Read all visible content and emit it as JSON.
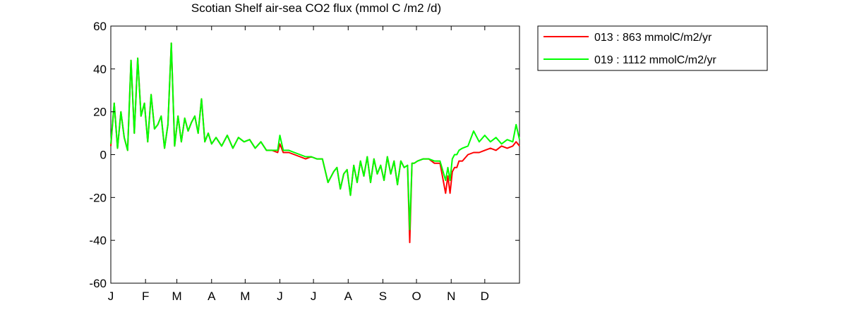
{
  "chart_data": {
    "type": "line",
    "title": "Scotian Shelf  air-sea CO2 flux (mmol C /m2 /d)",
    "xlabel": "",
    "ylabel": "",
    "ylim": [
      -60,
      60
    ],
    "yticks": [
      60,
      40,
      20,
      0,
      -20,
      -40,
      -60
    ],
    "xlim": [
      1,
      366
    ],
    "xticks": [
      {
        "day": 1,
        "label": "J"
      },
      {
        "day": 32,
        "label": "F"
      },
      {
        "day": 60,
        "label": "M"
      },
      {
        "day": 91,
        "label": "A"
      },
      {
        "day": 121,
        "label": "M"
      },
      {
        "day": 152,
        "label": "J"
      },
      {
        "day": 182,
        "label": "J"
      },
      {
        "day": 213,
        "label": "A"
      },
      {
        "day": 244,
        "label": "S"
      },
      {
        "day": 274,
        "label": "O"
      },
      {
        "day": 305,
        "label": "N"
      },
      {
        "day": 335,
        "label": "D"
      }
    ],
    "grid": false,
    "legend_position": "outside-top-right",
    "series": [
      {
        "name": "013 : 863 mmolC/m2/yr",
        "color": "#ff0000",
        "x": [
          1,
          4,
          7,
          10,
          13,
          16,
          19,
          22,
          25,
          28,
          31,
          34,
          37,
          40,
          43,
          46,
          49,
          52,
          55,
          58,
          61,
          64,
          67,
          70,
          73,
          76,
          79,
          82,
          85,
          88,
          91,
          95,
          100,
          105,
          110,
          115,
          120,
          125,
          130,
          135,
          140,
          145,
          150,
          152,
          155,
          160,
          165,
          170,
          175,
          180,
          185,
          190,
          195,
          200,
          203,
          206,
          209,
          212,
          215,
          218,
          221,
          224,
          227,
          230,
          233,
          236,
          239,
          242,
          245,
          248,
          251,
          254,
          257,
          260,
          263,
          266,
          268,
          270,
          272,
          275,
          280,
          285,
          290,
          295,
          300,
          302,
          304,
          306,
          308,
          310,
          312,
          315,
          320,
          325,
          330,
          335,
          340,
          345,
          350,
          355,
          360,
          363,
          366
        ],
        "y": [
          4,
          24,
          3,
          20,
          8,
          2,
          44,
          10,
          45,
          18,
          24,
          6,
          28,
          12,
          14,
          18,
          3,
          14,
          52,
          4,
          18,
          6,
          17,
          11,
          15,
          18,
          10,
          26,
          6,
          10,
          5,
          8,
          4,
          9,
          3,
          8,
          6,
          7,
          3,
          6,
          2,
          2,
          1,
          5,
          1,
          1,
          0,
          -1,
          -2,
          -1,
          -2,
          -2,
          -13,
          -8,
          -6,
          -16,
          -9,
          -7,
          -19,
          -5,
          -13,
          -3,
          -10,
          -1,
          -13,
          -2,
          -9,
          -5,
          -12,
          -1,
          -9,
          -3,
          -14,
          -3,
          -6,
          -5,
          -41,
          -4,
          -4,
          -3,
          -2,
          -2,
          -4,
          -4,
          -18,
          -10,
          -18,
          -8,
          -6,
          -6,
          -3,
          -3,
          0,
          1,
          1,
          2,
          3,
          2,
          4,
          3,
          4,
          6,
          4
        ]
      },
      {
        "name": "019 : 1112 mmolC/m2/yr",
        "color": "#00ff00",
        "x": [
          1,
          4,
          7,
          10,
          13,
          16,
          19,
          22,
          25,
          28,
          31,
          34,
          37,
          40,
          43,
          46,
          49,
          52,
          55,
          58,
          61,
          64,
          67,
          70,
          73,
          76,
          79,
          82,
          85,
          88,
          91,
          95,
          100,
          105,
          110,
          115,
          120,
          125,
          130,
          135,
          140,
          145,
          150,
          152,
          155,
          160,
          165,
          170,
          175,
          180,
          185,
          190,
          195,
          200,
          203,
          206,
          209,
          212,
          215,
          218,
          221,
          224,
          227,
          230,
          233,
          236,
          239,
          242,
          245,
          248,
          251,
          254,
          257,
          260,
          263,
          266,
          268,
          270,
          272,
          275,
          280,
          285,
          290,
          295,
          300,
          302,
          304,
          306,
          308,
          310,
          312,
          315,
          320,
          325,
          330,
          335,
          340,
          345,
          350,
          355,
          360,
          363,
          366
        ],
        "y": [
          5,
          24,
          3,
          20,
          8,
          2,
          44,
          10,
          45,
          18,
          24,
          6,
          28,
          12,
          14,
          18,
          3,
          14,
          52,
          4,
          18,
          6,
          17,
          11,
          15,
          18,
          10,
          26,
          6,
          10,
          5,
          8,
          4,
          9,
          3,
          8,
          6,
          7,
          3,
          6,
          2,
          2,
          2,
          9,
          2,
          2,
          1,
          0,
          -1,
          -1,
          -2,
          -2,
          -13,
          -8,
          -6,
          -16,
          -9,
          -7,
          -19,
          -5,
          -13,
          -3,
          -10,
          -1,
          -13,
          -2,
          -9,
          -5,
          -12,
          -1,
          -9,
          -3,
          -14,
          -3,
          -6,
          -5,
          -35,
          -4,
          -4,
          -3,
          -2,
          -2,
          -3,
          -3,
          -12,
          -6,
          -12,
          -2,
          0,
          0,
          2,
          3,
          4,
          11,
          6,
          9,
          6,
          8,
          5,
          7,
          6,
          14,
          7
        ]
      }
    ]
  }
}
